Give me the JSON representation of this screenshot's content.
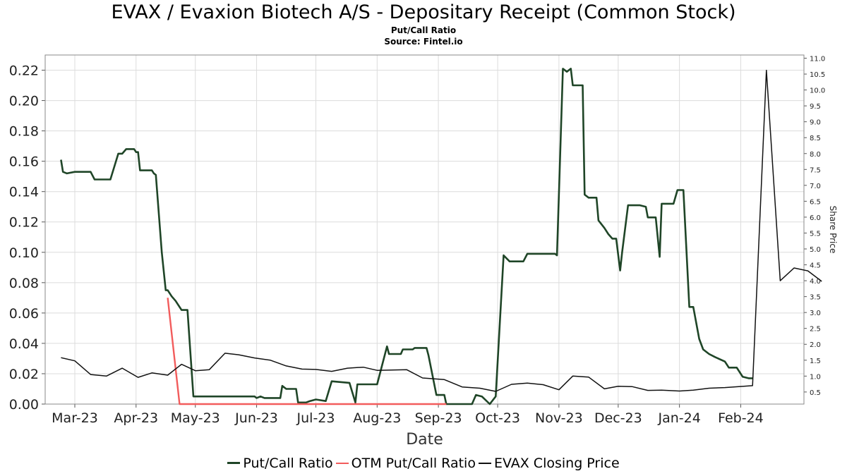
{
  "chart_data": {
    "type": "line",
    "title": "EVAX / Evaxion Biotech A/S - Depositary Receipt (Common Stock)",
    "subtitle": "Put/Call Ratio",
    "source": "Source: Fintel.io",
    "xlabel": "Date",
    "ylabel": "",
    "y2label": "Share Price",
    "xlim": [
      "2023-02-14",
      "2024-03-04"
    ],
    "ylim": [
      0,
      0.23
    ],
    "y2lim": [
      0.12,
      11.1
    ],
    "grid": true,
    "legend_position": "bottom",
    "x_ticks": [
      {
        "date": "2023-03-01",
        "label": "Mar-23"
      },
      {
        "date": "2023-04-01",
        "label": "Apr-23"
      },
      {
        "date": "2023-05-01",
        "label": "May-23"
      },
      {
        "date": "2023-06-01",
        "label": "Jun-23"
      },
      {
        "date": "2023-07-01",
        "label": "Jul-23"
      },
      {
        "date": "2023-08-01",
        "label": "Aug-23"
      },
      {
        "date": "2023-09-01",
        "label": "Sep-23"
      },
      {
        "date": "2023-10-01",
        "label": "Oct-23"
      },
      {
        "date": "2023-11-01",
        "label": "Nov-23"
      },
      {
        "date": "2023-12-01",
        "label": "Dec-23"
      },
      {
        "date": "2024-01-01",
        "label": "Jan-24"
      },
      {
        "date": "2024-02-01",
        "label": "Feb-24"
      }
    ],
    "y_ticks": [
      "0.00",
      "0.02",
      "0.04",
      "0.06",
      "0.08",
      "0.10",
      "0.12",
      "0.14",
      "0.16",
      "0.18",
      "0.20",
      "0.22"
    ],
    "y2_ticks": [
      "0.5",
      "1.0",
      "1.5",
      "2.0",
      "2.5",
      "3.0",
      "3.5",
      "4.0",
      "4.5",
      "5.0",
      "5.5",
      "6.0",
      "6.5",
      "7.0",
      "7.5",
      "8.0",
      "8.5",
      "9.0",
      "9.5",
      "10.0",
      "10.5",
      "11.0"
    ],
    "series": [
      {
        "name": "Put/Call Ratio",
        "axis": "left",
        "color": "#1f4527",
        "width": 2.6,
        "points": [
          [
            "2023-02-22",
            0.161
          ],
          [
            "2023-02-23",
            0.153
          ],
          [
            "2023-02-25",
            0.152
          ],
          [
            "2023-03-01",
            0.153
          ],
          [
            "2023-03-09",
            0.153
          ],
          [
            "2023-03-11",
            0.148
          ],
          [
            "2023-03-19",
            0.148
          ],
          [
            "2023-03-23",
            0.165
          ],
          [
            "2023-03-25",
            0.165
          ],
          [
            "2023-03-27",
            0.168
          ],
          [
            "2023-03-31",
            0.168
          ],
          [
            "2023-04-01",
            0.166
          ],
          [
            "2023-04-02",
            0.166
          ],
          [
            "2023-04-03",
            0.154
          ],
          [
            "2023-04-09",
            0.154
          ],
          [
            "2023-04-10",
            0.152
          ],
          [
            "2023-04-11",
            0.151
          ],
          [
            "2023-04-14",
            0.1
          ],
          [
            "2023-04-16",
            0.075
          ],
          [
            "2023-04-17",
            0.075
          ],
          [
            "2023-04-19",
            0.071
          ],
          [
            "2023-04-21",
            0.068
          ],
          [
            "2023-04-24",
            0.062
          ],
          [
            "2023-04-27",
            0.062
          ],
          [
            "2023-04-30",
            0.005
          ],
          [
            "2023-05-31",
            0.005
          ],
          [
            "2023-06-01",
            0.004
          ],
          [
            "2023-06-03",
            0.005
          ],
          [
            "2023-06-05",
            0.004
          ],
          [
            "2023-06-13",
            0.004
          ],
          [
            "2023-06-14",
            0.012
          ],
          [
            "2023-06-16",
            0.01
          ],
          [
            "2023-06-21",
            0.01
          ],
          [
            "2023-06-22",
            0.001
          ],
          [
            "2023-06-26",
            0.001
          ],
          [
            "2023-06-28",
            0.002
          ],
          [
            "2023-07-01",
            0.003
          ],
          [
            "2023-07-06",
            0.002
          ],
          [
            "2023-07-09",
            0.015
          ],
          [
            "2023-07-18",
            0.014
          ],
          [
            "2023-07-21",
            0.001
          ],
          [
            "2023-07-22",
            0.013
          ],
          [
            "2023-07-25",
            0.013
          ],
          [
            "2023-08-01",
            0.013
          ],
          [
            "2023-08-06",
            0.038
          ],
          [
            "2023-08-07",
            0.033
          ],
          [
            "2023-08-13",
            0.033
          ],
          [
            "2023-08-14",
            0.036
          ],
          [
            "2023-08-19",
            0.036
          ],
          [
            "2023-08-20",
            0.037
          ],
          [
            "2023-08-26",
            0.037
          ],
          [
            "2023-08-27",
            0.032
          ],
          [
            "2023-08-31",
            0.006
          ],
          [
            "2023-09-04",
            0.006
          ],
          [
            "2023-09-05",
            0.0
          ],
          [
            "2023-09-18",
            0.0
          ],
          [
            "2023-09-20",
            0.006
          ],
          [
            "2023-09-23",
            0.005
          ],
          [
            "2023-09-27",
            0.0
          ],
          [
            "2023-09-30",
            0.005
          ],
          [
            "2023-10-04",
            0.098
          ],
          [
            "2023-10-07",
            0.094
          ],
          [
            "2023-10-14",
            0.094
          ],
          [
            "2023-10-16",
            0.099
          ],
          [
            "2023-10-30",
            0.099
          ],
          [
            "2023-10-31",
            0.098
          ],
          [
            "2023-11-03",
            0.221
          ],
          [
            "2023-11-05",
            0.219
          ],
          [
            "2023-11-07",
            0.221
          ],
          [
            "2023-11-08",
            0.21
          ],
          [
            "2023-11-13",
            0.21
          ],
          [
            "2023-11-14",
            0.138
          ],
          [
            "2023-11-16",
            0.136
          ],
          [
            "2023-11-20",
            0.136
          ],
          [
            "2023-11-21",
            0.121
          ],
          [
            "2023-11-24",
            0.116
          ],
          [
            "2023-11-26",
            0.112
          ],
          [
            "2023-11-28",
            0.109
          ],
          [
            "2023-11-30",
            0.109
          ],
          [
            "2023-12-02",
            0.088
          ],
          [
            "2023-12-03",
            0.1
          ],
          [
            "2023-12-06",
            0.131
          ],
          [
            "2023-12-09",
            0.131
          ],
          [
            "2023-12-12",
            0.131
          ],
          [
            "2023-12-15",
            0.13
          ],
          [
            "2023-12-16",
            0.123
          ],
          [
            "2023-12-20",
            0.123
          ],
          [
            "2023-12-22",
            0.097
          ],
          [
            "2023-12-23",
            0.132
          ],
          [
            "2023-12-29",
            0.132
          ],
          [
            "2023-12-31",
            0.141
          ],
          [
            "2024-01-03",
            0.141
          ],
          [
            "2024-01-06",
            0.064
          ],
          [
            "2024-01-08",
            0.064
          ],
          [
            "2024-01-11",
            0.043
          ],
          [
            "2024-01-13",
            0.036
          ],
          [
            "2024-01-16",
            0.033
          ],
          [
            "2024-01-19",
            0.031
          ],
          [
            "2024-01-24",
            0.028
          ],
          [
            "2024-01-26",
            0.024
          ],
          [
            "2024-01-30",
            0.024
          ],
          [
            "2024-02-01",
            0.02
          ],
          [
            "2024-02-02",
            0.018
          ],
          [
            "2024-02-05",
            0.017
          ],
          [
            "2024-02-07",
            0.017
          ]
        ]
      },
      {
        "name": "OTM Put/Call Ratio",
        "axis": "left",
        "color": "#f25c5c",
        "width": 2.4,
        "points": [
          [
            "2023-04-17",
            0.07
          ],
          [
            "2023-04-23",
            0.0
          ],
          [
            "2023-09-05",
            0.0
          ]
        ]
      },
      {
        "name": "EVAX Closing Price",
        "axis": "right",
        "color": "#111111",
        "width": 1.5,
        "points": [
          [
            "2023-02-22",
            1.58
          ],
          [
            "2023-03-01",
            1.48
          ],
          [
            "2023-03-09",
            1.05
          ],
          [
            "2023-03-17",
            1.0
          ],
          [
            "2023-03-25",
            1.25
          ],
          [
            "2023-04-02",
            0.96
          ],
          [
            "2023-04-09",
            1.1
          ],
          [
            "2023-04-17",
            1.03
          ],
          [
            "2023-04-24",
            1.37
          ],
          [
            "2023-05-01",
            1.17
          ],
          [
            "2023-05-08",
            1.2
          ],
          [
            "2023-05-16",
            1.72
          ],
          [
            "2023-05-23",
            1.67
          ],
          [
            "2023-05-31",
            1.57
          ],
          [
            "2023-06-08",
            1.5
          ],
          [
            "2023-06-16",
            1.32
          ],
          [
            "2023-06-24",
            1.22
          ],
          [
            "2023-07-01",
            1.21
          ],
          [
            "2023-07-09",
            1.15
          ],
          [
            "2023-07-17",
            1.25
          ],
          [
            "2023-07-25",
            1.28
          ],
          [
            "2023-08-01",
            1.18
          ],
          [
            "2023-08-08",
            1.19
          ],
          [
            "2023-08-16",
            1.2
          ],
          [
            "2023-08-24",
            0.94
          ],
          [
            "2023-09-04",
            0.89
          ],
          [
            "2023-09-13",
            0.66
          ],
          [
            "2023-09-22",
            0.62
          ],
          [
            "2023-09-30",
            0.52
          ],
          [
            "2023-10-08",
            0.74
          ],
          [
            "2023-10-16",
            0.78
          ],
          [
            "2023-10-24",
            0.73
          ],
          [
            "2023-11-01",
            0.57
          ],
          [
            "2023-11-08",
            1.0
          ],
          [
            "2023-11-16",
            0.97
          ],
          [
            "2023-11-24",
            0.6
          ],
          [
            "2023-12-01",
            0.68
          ],
          [
            "2023-12-08",
            0.67
          ],
          [
            "2023-12-16",
            0.55
          ],
          [
            "2023-12-23",
            0.56
          ],
          [
            "2024-01-01",
            0.53
          ],
          [
            "2024-01-08",
            0.56
          ],
          [
            "2024-01-16",
            0.62
          ],
          [
            "2024-01-24",
            0.64
          ],
          [
            "2024-01-31",
            0.67
          ],
          [
            "2024-02-07",
            0.7
          ],
          [
            "2024-02-14",
            10.62
          ],
          [
            "2024-02-21",
            4.0
          ],
          [
            "2024-02-28",
            4.4
          ],
          [
            "2024-03-06",
            4.31
          ],
          [
            "2024-03-13",
            3.98
          ]
        ]
      }
    ]
  }
}
